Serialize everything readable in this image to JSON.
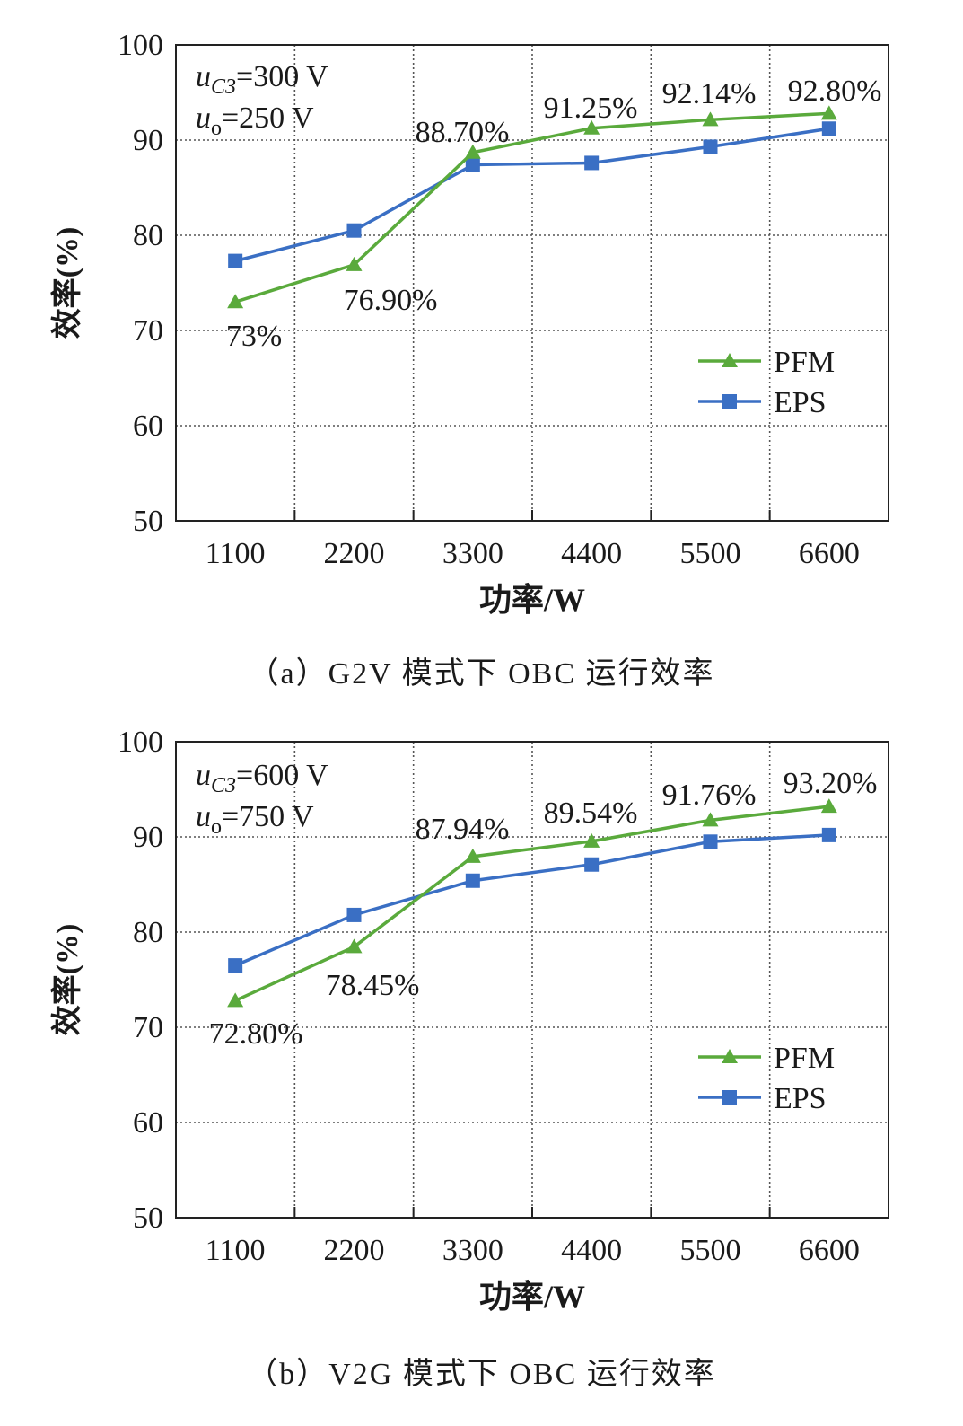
{
  "chart_data": [
    {
      "type": "line",
      "title": "",
      "xlabel": "功率/W",
      "ylabel": "效率(%)",
      "categories": [
        "1100",
        "2200",
        "3300",
        "4400",
        "5500",
        "6600"
      ],
      "ylim": [
        50,
        100
      ],
      "yticks": [
        "50",
        "60",
        "70",
        "80",
        "90",
        "100"
      ],
      "grid": true,
      "legend_position": "lower-right",
      "conditions": [
        {
          "var": "u",
          "sub": "C3",
          "value": "=300 V"
        },
        {
          "var": "u",
          "sub": "o",
          "value": "=250 V"
        }
      ],
      "series": [
        {
          "name": "PFM",
          "color": "#5aaa3c",
          "marker": "triangle",
          "values": [
            73,
            76.9,
            88.7,
            91.25,
            92.14,
            92.8
          ],
          "labels": [
            "73%",
            "76.90%",
            "88.70%",
            "91.25%",
            "92.14%",
            "92.80%"
          ]
        },
        {
          "name": "EPS",
          "color": "#3a6fc4",
          "marker": "square",
          "values": [
            77.3,
            80.5,
            87.4,
            87.6,
            89.3,
            91.2
          ]
        }
      ],
      "caption": "（a）G2V 模式下 OBC 运行效率"
    },
    {
      "type": "line",
      "title": "",
      "xlabel": "功率/W",
      "ylabel": "效率(%)",
      "categories": [
        "1100",
        "2200",
        "3300",
        "4400",
        "5500",
        "6600"
      ],
      "ylim": [
        50,
        100
      ],
      "yticks": [
        "50",
        "60",
        "70",
        "80",
        "90",
        "100"
      ],
      "grid": true,
      "legend_position": "lower-right",
      "conditions": [
        {
          "var": "u",
          "sub": "C3",
          "value": "=600 V"
        },
        {
          "var": "u",
          "sub": "o",
          "value": "=750 V"
        }
      ],
      "series": [
        {
          "name": "PFM",
          "color": "#5aaa3c",
          "marker": "triangle",
          "values": [
            72.8,
            78.45,
            87.94,
            89.54,
            91.76,
            93.2
          ],
          "labels": [
            "72.80%",
            "78.45%",
            "87.94%",
            "89.54%",
            "91.76%",
            "93.20%"
          ]
        },
        {
          "name": "EPS",
          "color": "#3a6fc4",
          "marker": "square",
          "values": [
            76.5,
            81.8,
            85.4,
            87.1,
            89.5,
            90.2
          ]
        }
      ],
      "caption": "（b）V2G 模式下 OBC 运行效率"
    }
  ]
}
